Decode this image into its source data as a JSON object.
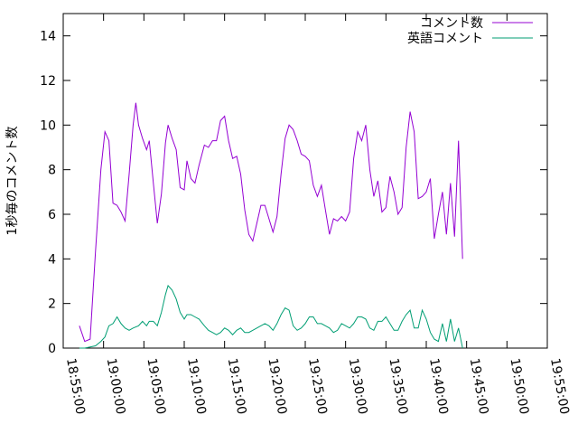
{
  "chart_data": {
    "type": "line",
    "title": "",
    "xlabel": "",
    "ylabel": "1秒毎のコメント数",
    "ylim": [
      0,
      15
    ],
    "yticks": [
      "0",
      "2",
      "4",
      "6",
      "8",
      "10",
      "12",
      "14"
    ],
    "xlim": [
      "18:55:00",
      "19:55:00"
    ],
    "xticks": [
      "18:55:00",
      "19:00:00",
      "19:05:00",
      "19:10:00",
      "19:15:00",
      "19:20:00",
      "19:25:00",
      "19:30:00",
      "19:35:00",
      "19:40:00",
      "19:45:00",
      "19:50:00",
      "19:55:00"
    ],
    "grid": false,
    "legend": "top-right",
    "series": [
      {
        "name": "コメント数",
        "color": "#9400d3",
        "points": [
          [
            "18:57:00",
            1.0
          ],
          [
            "18:57:40",
            0.3
          ],
          [
            "18:58:20",
            0.4
          ],
          [
            "18:59:00",
            4.3
          ],
          [
            "18:59:40",
            8.0
          ],
          [
            "19:00:10",
            9.7
          ],
          [
            "19:00:40",
            9.3
          ],
          [
            "19:01:10",
            6.5
          ],
          [
            "19:01:40",
            6.4
          ],
          [
            "19:02:10",
            6.1
          ],
          [
            "19:02:40",
            5.7
          ],
          [
            "19:03:10",
            7.8
          ],
          [
            "19:03:40",
            10.0
          ],
          [
            "19:04:00",
            11.0
          ],
          [
            "19:04:20",
            10.0
          ],
          [
            "19:04:50",
            9.4
          ],
          [
            "19:05:20",
            8.9
          ],
          [
            "19:05:40",
            9.3
          ],
          [
            "19:06:10",
            7.4
          ],
          [
            "19:06:40",
            5.6
          ],
          [
            "19:07:10",
            6.9
          ],
          [
            "19:07:40",
            9.2
          ],
          [
            "19:08:00",
            10.0
          ],
          [
            "19:08:30",
            9.4
          ],
          [
            "19:09:00",
            8.9
          ],
          [
            "19:09:30",
            7.2
          ],
          [
            "19:10:00",
            7.1
          ],
          [
            "19:10:20",
            8.4
          ],
          [
            "19:10:50",
            7.6
          ],
          [
            "19:11:20",
            7.4
          ],
          [
            "19:11:50",
            8.2
          ],
          [
            "19:12:30",
            9.1
          ],
          [
            "19:13:00",
            9.0
          ],
          [
            "19:13:30",
            9.3
          ],
          [
            "19:14:00",
            9.3
          ],
          [
            "19:14:30",
            10.2
          ],
          [
            "19:15:00",
            10.4
          ],
          [
            "19:15:30",
            9.3
          ],
          [
            "19:16:00",
            8.5
          ],
          [
            "19:16:30",
            8.6
          ],
          [
            "19:17:00",
            7.8
          ],
          [
            "19:17:30",
            6.2
          ],
          [
            "19:18:00",
            5.1
          ],
          [
            "19:18:30",
            4.8
          ],
          [
            "19:19:00",
            5.6
          ],
          [
            "19:19:30",
            6.4
          ],
          [
            "19:20:00",
            6.4
          ],
          [
            "19:20:30",
            5.8
          ],
          [
            "19:21:00",
            5.2
          ],
          [
            "19:21:30",
            5.9
          ],
          [
            "19:22:00",
            7.8
          ],
          [
            "19:22:30",
            9.4
          ],
          [
            "19:23:00",
            10.0
          ],
          [
            "19:23:30",
            9.8
          ],
          [
            "19:24:00",
            9.3
          ],
          [
            "19:24:30",
            8.7
          ],
          [
            "19:25:00",
            8.6
          ],
          [
            "19:25:30",
            8.4
          ],
          [
            "19:26:00",
            7.3
          ],
          [
            "19:26:30",
            6.8
          ],
          [
            "19:27:00",
            7.3
          ],
          [
            "19:27:30",
            6.2
          ],
          [
            "19:28:00",
            5.1
          ],
          [
            "19:28:30",
            5.8
          ],
          [
            "19:29:00",
            5.7
          ],
          [
            "19:29:30",
            5.9
          ],
          [
            "19:30:00",
            5.7
          ],
          [
            "19:30:30",
            6.1
          ],
          [
            "19:31:00",
            8.5
          ],
          [
            "19:31:30",
            9.7
          ],
          [
            "19:32:00",
            9.3
          ],
          [
            "19:32:30",
            10.0
          ],
          [
            "19:33:00",
            8.0
          ],
          [
            "19:33:30",
            6.8
          ],
          [
            "19:34:00",
            7.5
          ],
          [
            "19:34:30",
            6.1
          ],
          [
            "19:35:00",
            6.3
          ],
          [
            "19:35:30",
            7.7
          ],
          [
            "19:36:00",
            7.0
          ],
          [
            "19:36:30",
            6.0
          ],
          [
            "19:37:00",
            6.3
          ],
          [
            "19:37:30",
            9.0
          ],
          [
            "19:38:00",
            10.6
          ],
          [
            "19:38:30",
            9.7
          ],
          [
            "19:39:00",
            6.7
          ],
          [
            "19:39:30",
            6.8
          ],
          [
            "19:40:00",
            7.0
          ],
          [
            "19:40:30",
            7.6
          ],
          [
            "19:41:00",
            4.9
          ],
          [
            "19:41:30",
            6.0
          ],
          [
            "19:42:00",
            7.0
          ],
          [
            "19:42:30",
            5.1
          ],
          [
            "19:43:00",
            7.4
          ],
          [
            "19:43:30",
            5.0
          ],
          [
            "19:44:00",
            9.3
          ],
          [
            "19:44:30",
            4.0
          ]
        ]
      },
      {
        "name": "英語コメント",
        "color": "#009e73",
        "points": [
          [
            "18:57:00",
            0.0
          ],
          [
            "18:57:40",
            0.0
          ],
          [
            "18:58:20",
            0.05
          ],
          [
            "18:59:00",
            0.1
          ],
          [
            "18:59:40",
            0.3
          ],
          [
            "19:00:10",
            0.5
          ],
          [
            "19:00:40",
            1.0
          ],
          [
            "19:01:10",
            1.1
          ],
          [
            "19:01:40",
            1.4
          ],
          [
            "19:02:10",
            1.1
          ],
          [
            "19:02:40",
            0.9
          ],
          [
            "19:03:10",
            0.8
          ],
          [
            "19:03:40",
            0.9
          ],
          [
            "19:04:20",
            1.0
          ],
          [
            "19:04:50",
            1.2
          ],
          [
            "19:05:20",
            1.0
          ],
          [
            "19:05:40",
            1.2
          ],
          [
            "19:06:10",
            1.2
          ],
          [
            "19:06:40",
            1.0
          ],
          [
            "19:07:10",
            1.6
          ],
          [
            "19:07:40",
            2.4
          ],
          [
            "19:08:00",
            2.8
          ],
          [
            "19:08:30",
            2.6
          ],
          [
            "19:09:00",
            2.2
          ],
          [
            "19:09:30",
            1.6
          ],
          [
            "19:10:00",
            1.3
          ],
          [
            "19:10:20",
            1.5
          ],
          [
            "19:10:50",
            1.5
          ],
          [
            "19:11:20",
            1.4
          ],
          [
            "19:11:50",
            1.3
          ],
          [
            "19:12:30",
            1.0
          ],
          [
            "19:13:00",
            0.8
          ],
          [
            "19:13:30",
            0.7
          ],
          [
            "19:14:00",
            0.6
          ],
          [
            "19:14:30",
            0.7
          ],
          [
            "19:15:00",
            0.9
          ],
          [
            "19:15:30",
            0.8
          ],
          [
            "19:16:00",
            0.6
          ],
          [
            "19:16:30",
            0.8
          ],
          [
            "19:17:00",
            0.9
          ],
          [
            "19:17:30",
            0.7
          ],
          [
            "19:18:00",
            0.7
          ],
          [
            "19:18:30",
            0.8
          ],
          [
            "19:19:00",
            0.9
          ],
          [
            "19:19:30",
            1.0
          ],
          [
            "19:20:00",
            1.1
          ],
          [
            "19:20:30",
            1.0
          ],
          [
            "19:21:00",
            0.8
          ],
          [
            "19:21:30",
            1.1
          ],
          [
            "19:22:00",
            1.5
          ],
          [
            "19:22:30",
            1.8
          ],
          [
            "19:23:00",
            1.7
          ],
          [
            "19:23:30",
            1.0
          ],
          [
            "19:24:00",
            0.8
          ],
          [
            "19:24:30",
            0.9
          ],
          [
            "19:25:00",
            1.1
          ],
          [
            "19:25:30",
            1.4
          ],
          [
            "19:26:00",
            1.4
          ],
          [
            "19:26:30",
            1.1
          ],
          [
            "19:27:00",
            1.1
          ],
          [
            "19:27:30",
            1.0
          ],
          [
            "19:28:00",
            0.9
          ],
          [
            "19:28:30",
            0.7
          ],
          [
            "19:29:00",
            0.8
          ],
          [
            "19:29:30",
            1.1
          ],
          [
            "19:30:00",
            1.0
          ],
          [
            "19:30:30",
            0.9
          ],
          [
            "19:31:00",
            1.1
          ],
          [
            "19:31:30",
            1.4
          ],
          [
            "19:32:00",
            1.4
          ],
          [
            "19:32:30",
            1.3
          ],
          [
            "19:33:00",
            0.9
          ],
          [
            "19:33:30",
            0.8
          ],
          [
            "19:34:00",
            1.2
          ],
          [
            "19:34:30",
            1.2
          ],
          [
            "19:35:00",
            1.4
          ],
          [
            "19:35:30",
            1.1
          ],
          [
            "19:36:00",
            0.8
          ],
          [
            "19:36:30",
            0.8
          ],
          [
            "19:37:00",
            1.2
          ],
          [
            "19:37:30",
            1.5
          ],
          [
            "19:38:00",
            1.7
          ],
          [
            "19:38:30",
            0.9
          ],
          [
            "19:39:00",
            0.9
          ],
          [
            "19:39:30",
            1.7
          ],
          [
            "19:40:00",
            1.3
          ],
          [
            "19:40:30",
            0.7
          ],
          [
            "19:41:00",
            0.4
          ],
          [
            "19:41:30",
            0.3
          ],
          [
            "19:42:00",
            1.1
          ],
          [
            "19:42:30",
            0.3
          ],
          [
            "19:43:00",
            1.3
          ],
          [
            "19:43:30",
            0.3
          ],
          [
            "19:44:00",
            0.9
          ],
          [
            "19:44:30",
            0.0
          ]
        ]
      }
    ]
  }
}
